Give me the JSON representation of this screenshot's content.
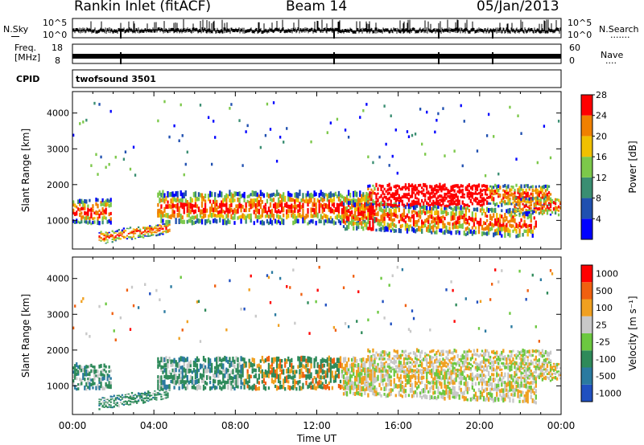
{
  "header": {
    "station": "Rankin Inlet (fitACF)",
    "beam": "Beam 14",
    "date": "05/Jan/2013"
  },
  "noise_panel": {
    "left_label": "N.Sky",
    "right_label": "N.Search",
    "right_dots": "·······",
    "ytick_top": "10^5",
    "ytick_bottom": "10^0",
    "ytick_top_r": "10^5",
    "ytick_bottom_r": "10^0"
  },
  "freq_panel": {
    "left_label_1": "Freq.",
    "left_label_2": "[MHz]",
    "right_label": "Nave",
    "right_dots": "····",
    "ytick_top": "18",
    "ytick_bottom": "8",
    "ytick_top_r": "60",
    "ytick_bottom_r": "0"
  },
  "cpid_panel": {
    "left_label": "CPID",
    "program": "twofsound 3501"
  },
  "chart_data": [
    {
      "type": "heatmap",
      "title": "",
      "xlabel": "Time UT",
      "ylabel": "Slant Range [km]",
      "x_ticks": [
        "00:00",
        "04:00",
        "08:00",
        "12:00",
        "16:00",
        "20:00",
        "00:00"
      ],
      "y_ticks": [
        1000,
        2000,
        3000,
        4000
      ],
      "ylim": [
        200,
        4600
      ],
      "colorbar": {
        "label": "Power [dB]",
        "ticks": [
          "4",
          "8",
          "12",
          "16",
          "20",
          "24",
          "28"
        ],
        "colors": [
          "#0000ff",
          "#2050b0",
          "#3a8e72",
          "#7cc84a",
          "#f0c000",
          "#f08000",
          "#ff0000"
        ]
      }
    },
    {
      "type": "heatmap",
      "title": "",
      "xlabel": "Time UT",
      "ylabel": "Slant Range [km]",
      "x_ticks": [
        "00:00",
        "04:00",
        "08:00",
        "12:00",
        "16:00",
        "20:00",
        "00:00"
      ],
      "y_ticks": [
        1000,
        2000,
        3000,
        4000
      ],
      "ylim": [
        200,
        4600
      ],
      "colorbar": {
        "label": "Velocity [m s⁻¹]",
        "ticks": [
          "1000",
          "500",
          "100",
          "25",
          "-25",
          "-100",
          "-500",
          "-1000"
        ],
        "colors": [
          "#2050c0",
          "#2a7aa0",
          "#2e8a5a",
          "#6cc840",
          "#c8c8c8",
          "#f0a020",
          "#f06010",
          "#ff0000"
        ]
      }
    }
  ]
}
